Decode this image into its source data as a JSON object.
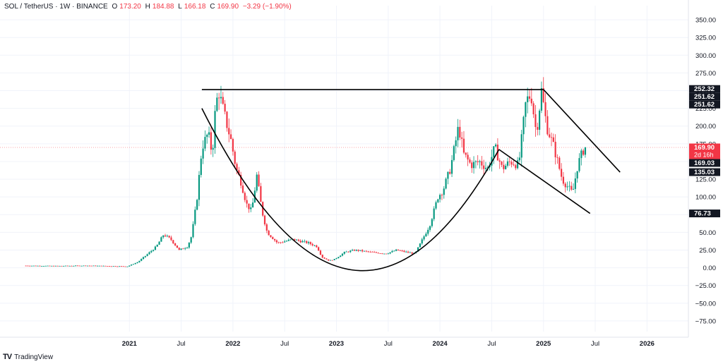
{
  "header": {
    "symbol": "SOL / TetherUS · 1W · BINANCE",
    "open_label": "O",
    "open": "173.20",
    "high_label": "H",
    "high": "184.88",
    "low_label": "L",
    "low": "166.18",
    "close_label": "C",
    "close": "169.90",
    "change": "−3.29 (−1.90%)"
  },
  "branding": {
    "logo": "TV",
    "name": "TradingView"
  },
  "colors": {
    "up": "#089981",
    "down": "#f23645",
    "axis_label_bg": "#131722",
    "price_label_bg": "#f23645"
  },
  "chart_data": {
    "type": "candlestick",
    "y_ticks": [
      "350.00",
      "325.00",
      "300.00",
      "275.00",
      "250.00",
      "225.00",
      "200.00",
      "175.00",
      "150.00",
      "125.00",
      "100.00",
      "75.00",
      "50.00",
      "25.00",
      "0.00",
      "−25.00",
      "−50.00",
      "−75.00"
    ],
    "x_ticks": [
      "2021",
      "Jul",
      "2022",
      "Jul",
      "2023",
      "Jul",
      "2024",
      "Jul",
      "2025",
      "Jul",
      "2026"
    ],
    "ylim": [
      -90,
      370
    ],
    "price_labels": [
      {
        "value": 252.32,
        "text": "252.32",
        "style": "dark"
      },
      {
        "value": 251.62,
        "text": "251.62",
        "style": "dark"
      },
      {
        "value": 251.62,
        "text": "251.62",
        "style": "dark"
      },
      {
        "value": 169.9,
        "text": "169.90",
        "sub": "2d 16h",
        "style": "current"
      },
      {
        "value": 169.03,
        "text": "169.03",
        "style": "dark"
      },
      {
        "value": 135.03,
        "text": "135.03",
        "style": "dark"
      },
      {
        "value": 76.73,
        "text": "76.73",
        "style": "dark"
      }
    ],
    "current_price": 169.9,
    "drawings": {
      "resistance": [
        [
          2021.7,
          251.6
        ],
        [
          2025.0,
          251.6
        ]
      ],
      "descending_upper": [
        [
          2025.0,
          251.6
        ],
        [
          2025.74,
          135.0
        ]
      ],
      "descending_lower": [
        [
          2024.57,
          167
        ],
        [
          2025.45,
          76.7
        ]
      ],
      "cup_curve": [
        [
          2021.7,
          225
        ],
        [
          2023.15,
          -3
        ],
        [
          2024.57,
          167
        ]
      ]
    },
    "price_path": [
      [
        2020.0,
        3
      ],
      [
        2020.3,
        2.5
      ],
      [
        2020.6,
        3
      ],
      [
        2020.9,
        2.2
      ],
      [
        2021.0,
        2
      ],
      [
        2021.1,
        8
      ],
      [
        2021.2,
        20
      ],
      [
        2021.28,
        30
      ],
      [
        2021.35,
        47
      ],
      [
        2021.42,
        40
      ],
      [
        2021.5,
        25
      ],
      [
        2021.58,
        30
      ],
      [
        2021.62,
        45
      ],
      [
        2021.67,
        95
      ],
      [
        2021.72,
        170
      ],
      [
        2021.78,
        190
      ],
      [
        2021.82,
        160
      ],
      [
        2021.85,
        225
      ],
      [
        2021.88,
        250
      ],
      [
        2021.93,
        220
      ],
      [
        2022.0,
        180
      ],
      [
        2022.05,
        140
      ],
      [
        2022.1,
        120
      ],
      [
        2022.15,
        90
      ],
      [
        2022.2,
        80
      ],
      [
        2022.25,
        130
      ],
      [
        2022.3,
        80
      ],
      [
        2022.35,
        50
      ],
      [
        2022.45,
        35
      ],
      [
        2022.6,
        40
      ],
      [
        2022.75,
        35
      ],
      [
        2022.83,
        30
      ],
      [
        2022.88,
        15
      ],
      [
        2022.95,
        10
      ],
      [
        2023.0,
        12
      ],
      [
        2023.1,
        22
      ],
      [
        2023.2,
        25
      ],
      [
        2023.35,
        22
      ],
      [
        2023.5,
        20
      ],
      [
        2023.6,
        25
      ],
      [
        2023.7,
        22
      ],
      [
        2023.78,
        20
      ],
      [
        2023.85,
        40
      ],
      [
        2023.92,
        60
      ],
      [
        2024.0,
        100
      ],
      [
        2024.05,
        110
      ],
      [
        2024.12,
        140
      ],
      [
        2024.2,
        200
      ],
      [
        2024.25,
        160
      ],
      [
        2024.32,
        145
      ],
      [
        2024.4,
        150
      ],
      [
        2024.48,
        140
      ],
      [
        2024.55,
        170
      ],
      [
        2024.62,
        140
      ],
      [
        2024.7,
        150
      ],
      [
        2024.78,
        145
      ],
      [
        2024.85,
        235
      ],
      [
        2024.9,
        245
      ],
      [
        2024.95,
        190
      ],
      [
        2025.0,
        250
      ],
      [
        2025.05,
        200
      ],
      [
        2025.12,
        170
      ],
      [
        2025.2,
        125
      ],
      [
        2025.25,
        115
      ],
      [
        2025.3,
        105
      ],
      [
        2025.35,
        145
      ],
      [
        2025.4,
        165
      ],
      [
        2025.42,
        170
      ]
    ]
  }
}
